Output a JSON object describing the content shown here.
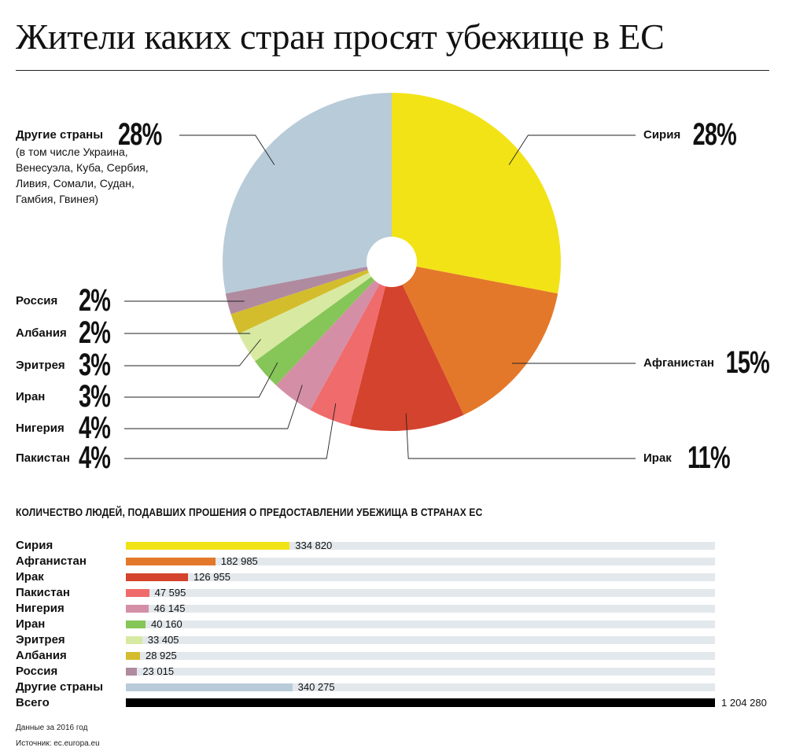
{
  "title": "Жители каких стран просят убежище в ЕС",
  "pie": {
    "note": "(в том числе Украина, Венесуэла, Куба, Сербия, Ливия, Сомали, Судан, Гамбия, Гвинея)"
  },
  "bars_title": "КОЛИЧЕСТВО ЛЮДЕЙ, ПОДАВШИХ ПРОШЕНИЯ О ПРЕДОСТАВЛЕНИИ УБЕЖИЩА В СТРАНАХ ЕС",
  "total": {
    "label": "Всего",
    "value": 1204280,
    "display": "1 204 280"
  },
  "footer": {
    "period": "Данные за 2016 год",
    "source": "Источник: ec.europa.eu"
  },
  "chart_data": [
    {
      "type": "pie",
      "categories": [
        "Сирия",
        "Афганистан",
        "Ирак",
        "Пакистан",
        "Нигерия",
        "Иран",
        "Эритрея",
        "Албания",
        "Россия",
        "Другие страны"
      ],
      "values": [
        28,
        15,
        11,
        4,
        4,
        3,
        3,
        2,
        2,
        28
      ],
      "labels": [
        "28%",
        "15%",
        "11%",
        "4%",
        "4%",
        "3%",
        "3%",
        "2%",
        "2%",
        "28%"
      ],
      "colors": [
        "#f2e317",
        "#e4782a",
        "#d4432d",
        "#f06b6b",
        "#d48fa6",
        "#86c557",
        "#d8e9a2",
        "#d4bd2c",
        "#b08b9f",
        "#b8cbd8"
      ]
    },
    {
      "type": "bar",
      "categories": [
        "Сирия",
        "Афганистан",
        "Ирак",
        "Пакистан",
        "Нигерия",
        "Иран",
        "Эритрея",
        "Албания",
        "Россия",
        "Другие страны"
      ],
      "values": [
        334820,
        182985,
        126955,
        47595,
        46145,
        40160,
        33405,
        28925,
        23015,
        340275
      ],
      "value_labels": [
        "334 820",
        "182 985",
        "126 955",
        "47 595",
        "46 145",
        "40 160",
        "33 405",
        "28 925",
        "23 015",
        "340 275"
      ],
      "colors": [
        "#f2e317",
        "#e4782a",
        "#d4432d",
        "#f06b6b",
        "#d48fa6",
        "#86c557",
        "#d8e9a2",
        "#d4bd2c",
        "#b08b9f",
        "#b8cbd8"
      ],
      "xlim": [
        0,
        1204280
      ]
    }
  ]
}
